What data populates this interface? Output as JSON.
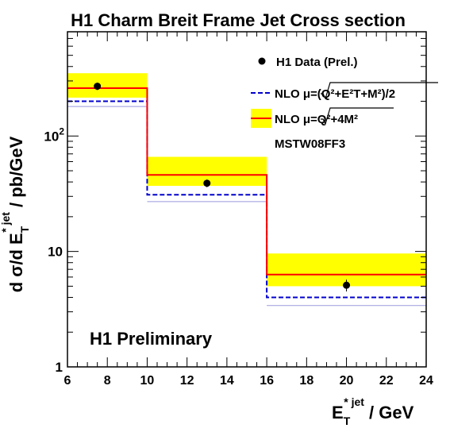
{
  "chart_data": {
    "type": "line",
    "title": "H1 Charm Breit Frame Jet Cross section",
    "xlabel": {
      "main": "E",
      "sub": "T",
      "sup": "* jet",
      "rest": " / GeV"
    },
    "ylabel": {
      "pre": "d σ/d E",
      "sub": "T",
      "sup": "* jet",
      "rest": " / pb/GeV"
    },
    "annotation": "H1 Preliminary",
    "pdf_label": "MSTW08FF3",
    "xlim": [
      6,
      24
    ],
    "ylim": [
      1,
      800
    ],
    "yscale": "log",
    "x_ticks": [
      "6",
      "8",
      "10",
      "12",
      "14",
      "16",
      "18",
      "20",
      "22",
      "24"
    ],
    "y_ticks": [
      {
        "value": 1,
        "label": "1"
      },
      {
        "value": 10,
        "label": "10"
      },
      {
        "value": 100,
        "label": "10",
        "sup": "2"
      }
    ],
    "bins": [
      [
        6,
        10
      ],
      [
        10,
        16
      ],
      [
        16,
        24
      ]
    ],
    "data_points": {
      "name": "H1 Data (Prel.)",
      "x": [
        7.5,
        13,
        20
      ],
      "y": [
        270,
        39,
        5.1
      ],
      "err_low": [
        20,
        3,
        0.6
      ],
      "err_high": [
        20,
        3,
        0.6
      ]
    },
    "nlo_red": {
      "legend_prefix": "NLO μ=",
      "legend_expr": "Q²+4M²",
      "values": [
        260,
        46,
        6.3
      ],
      "band_low": [
        215,
        37,
        5.0
      ],
      "band_high": [
        350,
        66,
        9.6
      ],
      "color": "#ff0000",
      "band_color": "#ffff00"
    },
    "nlo_blue": {
      "legend_prefix": "NLO μ=",
      "legend_expr": "(Q²+E²T+M²)/2",
      "values": [
        200,
        31,
        4.0
      ],
      "band_low": [
        180,
        27,
        3.4
      ],
      "color": "#0000cc",
      "band_line_color": "#9999dd"
    },
    "grid": false,
    "legend_position": "top-right"
  }
}
